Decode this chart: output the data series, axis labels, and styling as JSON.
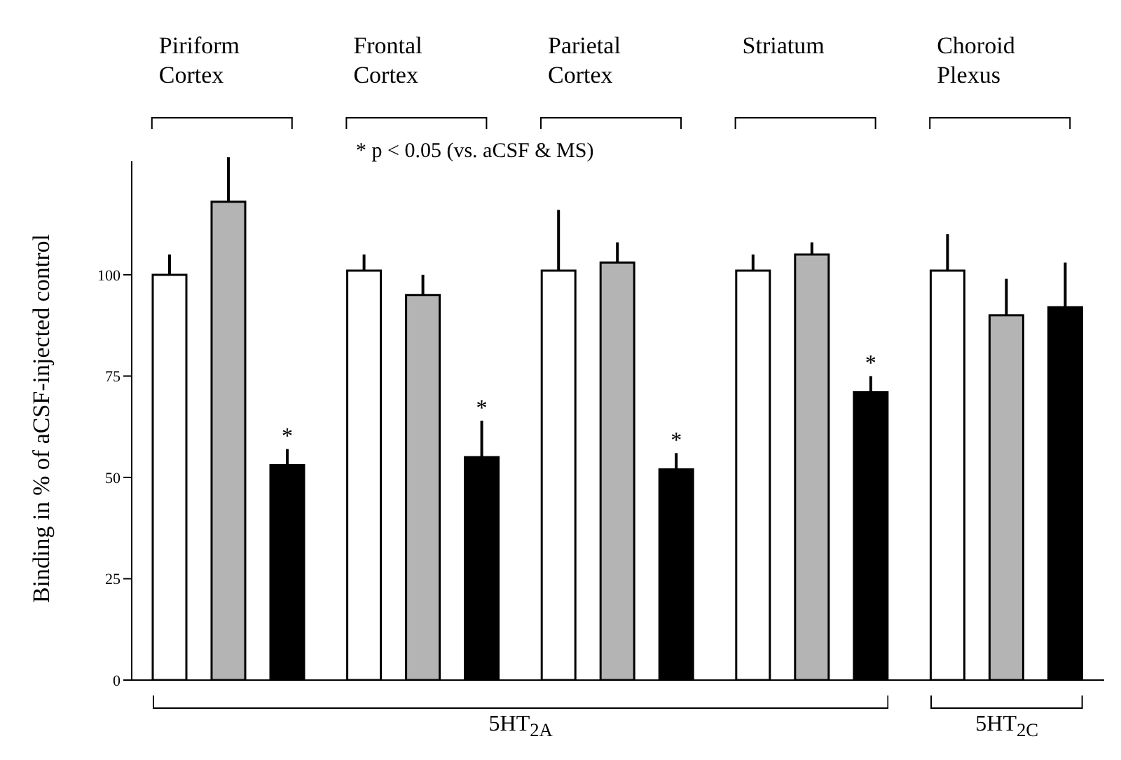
{
  "chart_data": {
    "type": "bar",
    "ylabel": "Binding in % of aCSF-injected control",
    "categories": [
      "Piriform Cortex",
      "Frontal Cortex",
      "Parietal Cortex",
      "Striatum",
      "Choroid Plexus"
    ],
    "series": [
      {
        "color": "#ffffff",
        "values": [
          100,
          101,
          101,
          101,
          101
        ],
        "errors": [
          [
            100,
            105
          ],
          [
            101,
            105
          ],
          [
            101,
            116
          ],
          [
            101,
            105
          ],
          [
            101,
            110
          ]
        ]
      },
      {
        "color": "#b4b4b4",
        "values": [
          118,
          95,
          103,
          105,
          90
        ],
        "errors": [
          [
            118,
            129
          ],
          [
            95,
            100
          ],
          [
            103,
            108
          ],
          [
            105,
            108
          ],
          [
            90,
            99
          ]
        ]
      },
      {
        "color": "#000000",
        "values": [
          53,
          55,
          52,
          71,
          92
        ],
        "errors": [
          [
            53,
            57
          ],
          [
            55,
            64
          ],
          [
            52,
            56
          ],
          [
            71,
            75
          ],
          [
            92,
            103
          ]
        ],
        "value_labels": [
          "*",
          "*",
          "*",
          "*",
          null
        ]
      }
    ],
    "ylim": [
      0,
      128
    ],
    "yticks": [
      0,
      25,
      50,
      75,
      100
    ],
    "annotations": [
      "* p < 0.05 (vs. aCSF & MS)",
      "5HT$_{2A}$",
      "5HT$_{2C}$"
    ]
  }
}
